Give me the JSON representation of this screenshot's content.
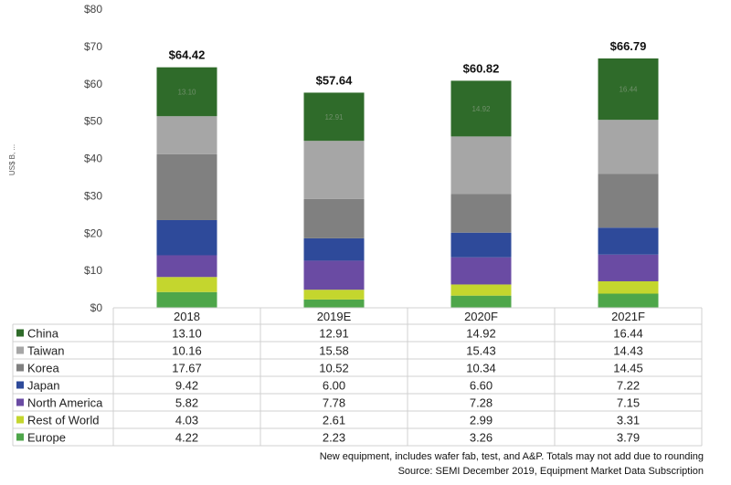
{
  "chart_data": {
    "type": "bar",
    "stacked": true,
    "categories": [
      "2018",
      "2019E",
      "2020F",
      "2021F"
    ],
    "ylabel": "US$ B, ...",
    "ylim": [
      0,
      80
    ],
    "yticks": [
      "$0",
      "$10",
      "$20",
      "$30",
      "$40",
      "$50",
      "$60",
      "$70",
      "$80"
    ],
    "totals": [
      "$64.42",
      "$57.64",
      "$60.82",
      "$66.79"
    ],
    "grid": false,
    "legend": "table-below",
    "series": [
      {
        "name": "China",
        "color": "#2f6b2a",
        "values": [
          13.1,
          12.91,
          14.92,
          16.44
        ],
        "labels": [
          "13.10",
          "12.91",
          "14.92",
          "16.44"
        ]
      },
      {
        "name": "Taiwan",
        "color": "#a6a6a6",
        "values": [
          10.16,
          15.58,
          15.43,
          14.43
        ],
        "labels": [
          "10.16",
          "15.58",
          "15.43",
          "14.43"
        ]
      },
      {
        "name": "Korea",
        "color": "#808080",
        "values": [
          17.67,
          10.52,
          10.34,
          14.45
        ],
        "labels": [
          "17.67",
          "10.52",
          "10.34",
          "14.45"
        ]
      },
      {
        "name": "Japan",
        "color": "#2e4a9a",
        "values": [
          9.42,
          6.0,
          6.6,
          7.22
        ],
        "labels": [
          "9.42",
          "6.00",
          "6.60",
          "7.22"
        ]
      },
      {
        "name": "North America",
        "color": "#6a4ba3",
        "values": [
          5.82,
          7.78,
          7.28,
          7.15
        ],
        "labels": [
          "5.82",
          "7.78",
          "7.28",
          "7.15"
        ]
      },
      {
        "name": "Rest of World",
        "color": "#c4d62e",
        "values": [
          4.03,
          2.61,
          2.99,
          3.31
        ],
        "labels": [
          "4.03",
          "2.61",
          "2.99",
          "3.31"
        ]
      },
      {
        "name": "Europe",
        "color": "#4ea64a",
        "values": [
          4.22,
          2.23,
          3.26,
          3.79
        ],
        "labels": [
          "4.22",
          "2.23",
          "3.26",
          "3.79"
        ]
      }
    ]
  },
  "footnotes": {
    "line1": "New equipment, includes wafer fab, test, and A&P. Totals may not add due to rounding",
    "line2": "Source: SEMI December 2019, Equipment Market Data Subscription"
  }
}
